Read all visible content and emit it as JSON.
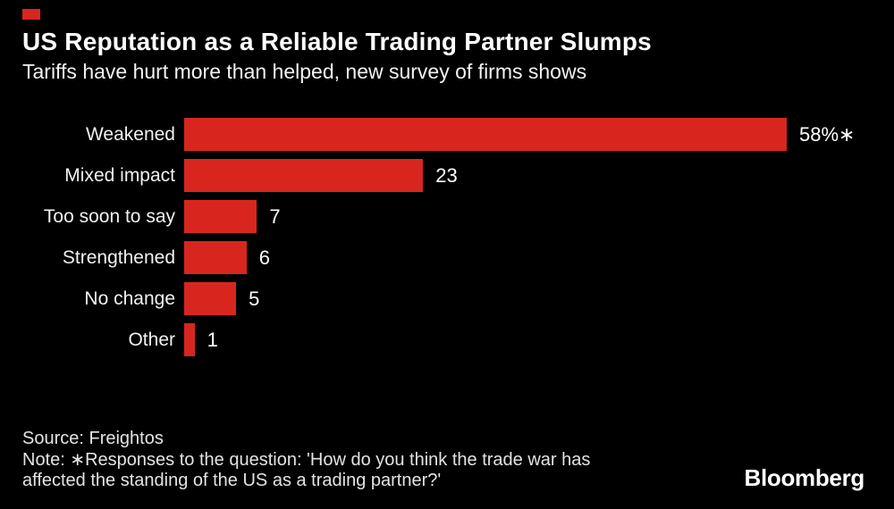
{
  "meta": {
    "background_color": "#000000",
    "accent_red": "#d8261f",
    "text_white": "#ffffff",
    "text_gray": "#e3e3e3"
  },
  "header": {
    "title": "US Reputation as a Reliable Trading Partner Slumps",
    "subtitle": "Tariffs have hurt more than helped, new survey of firms shows"
  },
  "chart_data": {
    "type": "bar",
    "orientation": "horizontal",
    "title": "US Reputation as a Reliable Trading Partner Slumps",
    "subtitle": "Tariffs have hurt more than helped, new survey of firms shows",
    "categories": [
      "Weakened",
      "Mixed impact",
      "Too soon to say",
      "Strengthened",
      "No change",
      "Other"
    ],
    "values": [
      58,
      23,
      7,
      6,
      5,
      1
    ],
    "value_labels": [
      "58%∗",
      "23",
      "7",
      "6",
      "5",
      "1"
    ],
    "unit": "%",
    "xlabel": "",
    "ylabel": "",
    "xlim": [
      0,
      58
    ],
    "grid": false,
    "legend": false,
    "bar_color": "#d8261f",
    "axis_shown": false
  },
  "footer": {
    "source": "Source: Freightos",
    "note_lines": [
      "Note: ∗Responses to the question: 'How do you think the trade war has",
      "affected the standing of the US as a trading partner?'"
    ]
  },
  "branding": {
    "logo_text": "Bloomberg",
    "flag_color": "#d8261f"
  }
}
